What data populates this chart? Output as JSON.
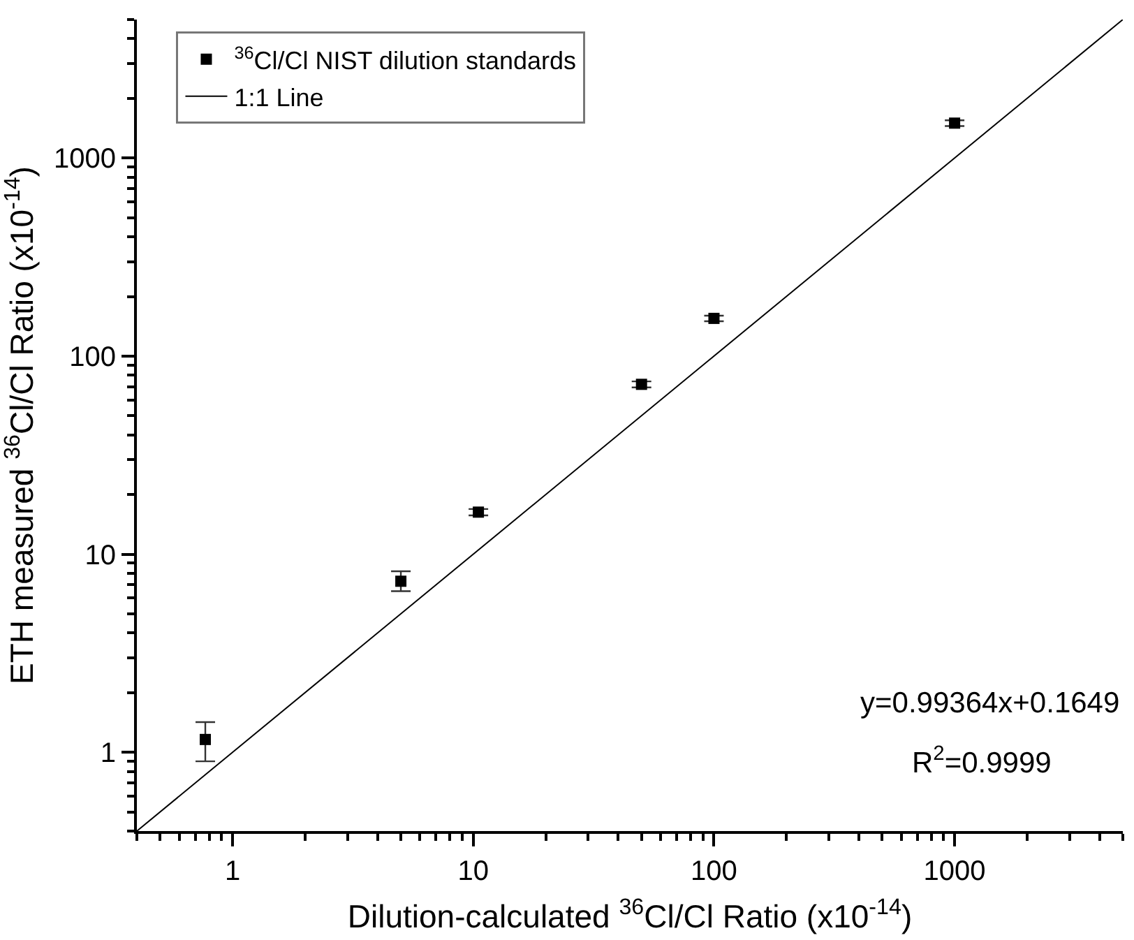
{
  "chart_data": {
    "type": "scatter",
    "xlabel": "Dilution-calculated $^{36}$Cl/Cl Ratio (x10$^{-14}$)",
    "ylabel": "ETH measured $^{36}$Cl/Cl Ratio (x10$^{-14}$)",
    "log": "xy",
    "grid": false,
    "legend": "top left",
    "marker": "square",
    "xlim": [
      0.4,
      5000
    ],
    "ylim": [
      0.4,
      5000
    ],
    "xticks": [
      {
        "value": 0.4,
        "label": null
      },
      {
        "value": 0.5,
        "label": null
      },
      {
        "value": 0.6,
        "label": null
      },
      {
        "value": 0.7,
        "label": null
      },
      {
        "value": 0.8,
        "label": null
      },
      {
        "value": 0.9,
        "label": null
      },
      1,
      {
        "value": 2,
        "label": null
      },
      {
        "value": 3,
        "label": null
      },
      {
        "value": 4,
        "label": null
      },
      {
        "value": 5,
        "label": null
      },
      {
        "value": 6,
        "label": null
      },
      {
        "value": 7,
        "label": null
      },
      {
        "value": 8,
        "label": null
      },
      {
        "value": 9,
        "label": null
      },
      10,
      {
        "value": 20,
        "label": null
      },
      {
        "value": 30,
        "label": null
      },
      {
        "value": 40,
        "label": null
      },
      {
        "value": 50,
        "label": null
      },
      {
        "value": 60,
        "label": null
      },
      {
        "value": 70,
        "label": null
      },
      {
        "value": 80,
        "label": null
      },
      {
        "value": 90,
        "label": null
      },
      100,
      {
        "value": 200,
        "label": null
      },
      {
        "value": 300,
        "label": null
      },
      {
        "value": 400,
        "label": null
      },
      {
        "value": 500,
        "label": null
      },
      {
        "value": 600,
        "label": null
      },
      {
        "value": 700,
        "label": null
      },
      {
        "value": 800,
        "label": null
      },
      {
        "value": 900,
        "label": null
      },
      1000,
      {
        "value": 2000,
        "label": null
      },
      {
        "value": 3000,
        "label": null
      },
      {
        "value": 4000,
        "label": null
      },
      {
        "value": 5000,
        "label": null
      }
    ],
    "yticks": [
      {
        "value": 0.4,
        "label": null
      },
      {
        "value": 0.5,
        "label": null
      },
      {
        "value": 0.6,
        "label": null
      },
      {
        "value": 0.7,
        "label": null
      },
      {
        "value": 0.8,
        "label": null
      },
      {
        "value": 0.9,
        "label": null
      },
      1,
      {
        "value": 2,
        "label": null
      },
      {
        "value": 3,
        "label": null
      },
      {
        "value": 4,
        "label": null
      },
      {
        "value": 5,
        "label": null
      },
      {
        "value": 6,
        "label": null
      },
      {
        "value": 7,
        "label": null
      },
      {
        "value": 8,
        "label": null
      },
      {
        "value": 9,
        "label": null
      },
      10,
      {
        "value": 20,
        "label": null
      },
      {
        "value": 30,
        "label": null
      },
      {
        "value": 40,
        "label": null
      },
      {
        "value": 50,
        "label": null
      },
      {
        "value": 60,
        "label": null
      },
      {
        "value": 70,
        "label": null
      },
      {
        "value": 80,
        "label": null
      },
      {
        "value": 90,
        "label": null
      },
      100,
      {
        "value": 200,
        "label": null
      },
      {
        "value": 300,
        "label": null
      },
      {
        "value": 400,
        "label": null
      },
      {
        "value": 500,
        "label": null
      },
      {
        "value": 600,
        "label": null
      },
      {
        "value": 700,
        "label": null
      },
      {
        "value": 800,
        "label": null
      },
      {
        "value": 900,
        "label": null
      },
      1000,
      {
        "value": 2000,
        "label": null
      },
      {
        "value": 3000,
        "label": null
      },
      {
        "value": 4000,
        "label": null
      },
      {
        "value": 5000,
        "label": null
      }
    ],
    "series": [
      {
        "name": "$^{36}$Cl/Cl NIST dilution standards",
        "color": "#000000",
        "x": [
          0.77,
          5,
          10.5,
          50,
          100,
          1000
        ],
        "values": [
          1.16,
          7.3,
          16.3,
          72,
          155,
          1500
        ],
        "errors": [
          [
            0.9,
            1.42
          ],
          [
            6.5,
            8.2
          ],
          0.6,
          2.5,
          5,
          50
        ]
      },
      {
        "name": "1:1 Line",
        "type": "line",
        "color": "#000000",
        "marker": "none",
        "line_style": "solid",
        "x": [
          0.4,
          5000
        ],
        "values": [
          0.4,
          5000
        ]
      }
    ],
    "annotations": [
      "y=0.99364x+0.1649",
      "R$^{2}$=0.9999"
    ]
  }
}
